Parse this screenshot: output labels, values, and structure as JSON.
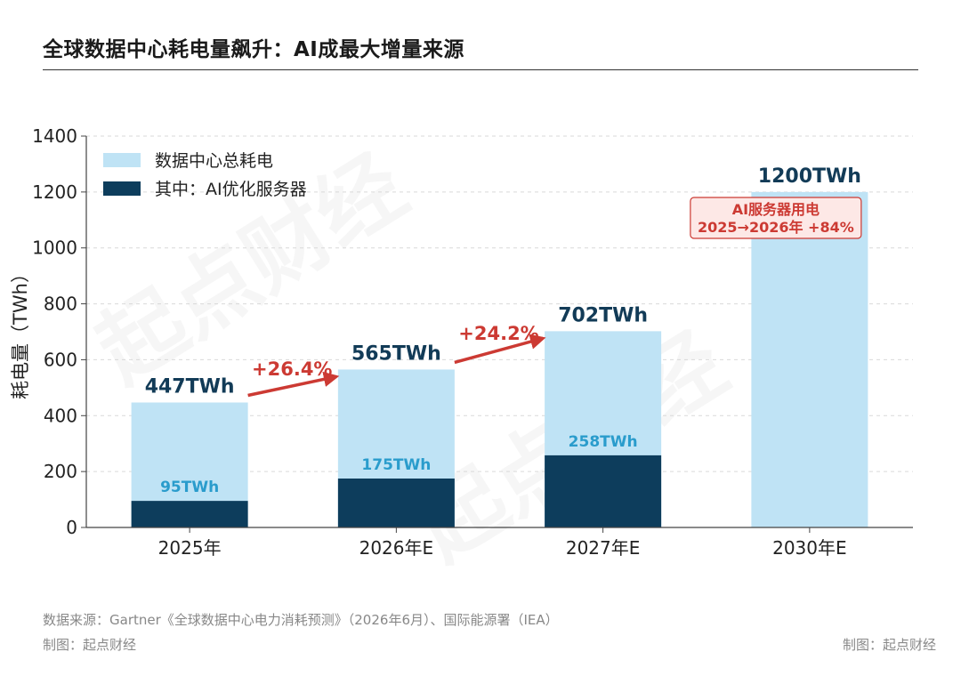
{
  "title": "全球数据中心耗电量飙升：AI成最大增量来源",
  "watermark": "起点财经",
  "colors": {
    "total": "#bfe3f5",
    "ai": "#0d3d5c",
    "arrow": "#cc3a33",
    "ai_label": "#2a9ccc",
    "total_label": "#123b57",
    "callout_bg": "#fde8e6",
    "callout_border": "#cc3a33"
  },
  "chart_data": {
    "type": "bar",
    "categories": [
      "2025年",
      "2026年E",
      "2027年E",
      "2030年E"
    ],
    "series": [
      {
        "name": "数据中心总耗电",
        "values": [
          447,
          565,
          702,
          1200
        ]
      },
      {
        "name": "其中：AI优化服务器",
        "values": [
          95,
          175,
          258,
          null
        ]
      }
    ],
    "total_labels": [
      "447TWh",
      "565TWh",
      "702TWh",
      "1200TWh"
    ],
    "ai_labels": [
      "95TWh",
      "175TWh",
      "258TWh",
      ""
    ],
    "ylabel": "耗电量（TWh）",
    "ylim": [
      0,
      1400
    ],
    "yticks": [
      0,
      200,
      400,
      600,
      800,
      1000,
      1200,
      1400
    ],
    "grid": true,
    "legend": "top-left",
    "growth": [
      {
        "from": 0,
        "to": 1,
        "label": "+26.4%"
      },
      {
        "from": 1,
        "to": 2,
        "label": "+24.2%"
      }
    ],
    "callout": {
      "line1": "AI服务器用电",
      "line2": "2025→2026年 +84%"
    }
  },
  "footer": {
    "source": "数据来源：Gartner《全球数据中心电力消耗预测》（2026年6月）、国际能源署（IEA）",
    "credit_left": "制图：起点财经",
    "credit_right": "制图：起点财经"
  }
}
